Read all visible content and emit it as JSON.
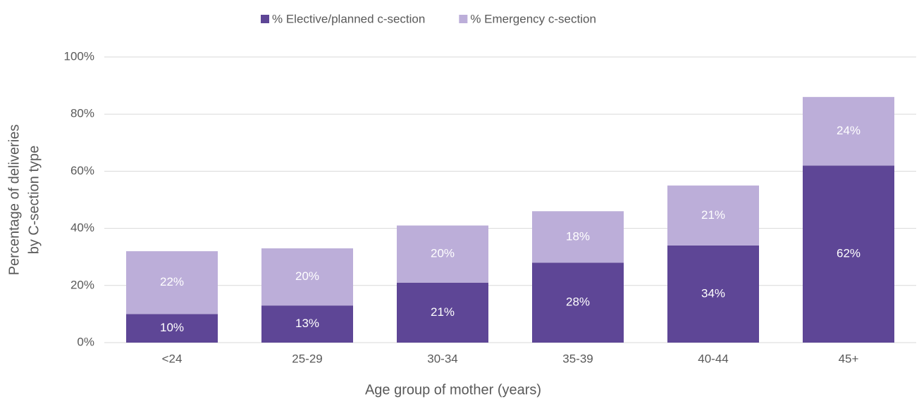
{
  "chart_data": {
    "type": "stacked_bar",
    "categories": [
      "<24",
      "25-29",
      "30-34",
      "35-39",
      "40-44",
      "45+"
    ],
    "series": [
      {
        "name": "% Elective/planned c-section",
        "color": "#5e4696",
        "values": [
          10,
          13,
          21,
          28,
          34,
          62
        ],
        "value_labels": [
          "10%",
          "13%",
          "21%",
          "28%",
          "34%",
          "62%"
        ]
      },
      {
        "name": "% Emergency c-section",
        "color": "#bcaed9",
        "values": [
          22,
          20,
          20,
          18,
          21,
          24
        ],
        "value_labels": [
          "22%",
          "20%",
          "20%",
          "18%",
          "21%",
          "24%"
        ]
      }
    ],
    "x_label": "Age group of mother (years)",
    "y_label": [
      "Percentage of deliveries",
      "by C-section type"
    ],
    "ylim": [
      0,
      100
    ],
    "yticks": [
      {
        "value": 0,
        "label": "0%"
      },
      {
        "value": 20,
        "label": "20%"
      },
      {
        "value": 40,
        "label": "40%"
      },
      {
        "value": 60,
        "label": "60%"
      },
      {
        "value": 80,
        "label": "80%"
      },
      {
        "value": 100,
        "label": "100%"
      }
    ],
    "grid": true,
    "legend": "top"
  }
}
